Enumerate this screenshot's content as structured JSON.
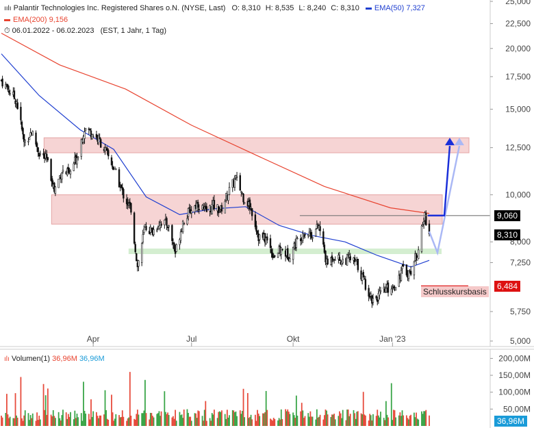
{
  "header": {
    "title": "Palantir Technologies Inc. Registered Shares o.N. (NYSE, Last)",
    "ohlc": [
      {
        "label": "O:",
        "value": "8,310"
      },
      {
        "label": "H:",
        "value": "8,535"
      },
      {
        "label": "L:",
        "value": "8,240"
      },
      {
        "label": "C:",
        "value": "8,310"
      }
    ],
    "ema50_label": "EMA(50)",
    "ema50_value": "7,327",
    "ema200_label": "EMA(200)",
    "ema200_value": "9,156",
    "date_range": "06.01.2022 - 06.02.2023",
    "date_meta": "(EST, 1 Jahr, 1 Tag)"
  },
  "volume_header": {
    "label": "Volumen(1)",
    "value_orange": "36,96M",
    "value_blue": "36,96M"
  },
  "colors": {
    "up": "#3aa548",
    "down": "#e74b3c",
    "ema200": "#e8432f",
    "ema50": "#1f3fd0",
    "resistance_zone": "#f3c6c6",
    "support_zone": "#cdebc8",
    "arrow_dark": "#1a2fd9",
    "arrow_light": "#aab8f5",
    "tag_dark": "#000000",
    "tag_red": "#dd1111",
    "vol_tag": "#1a9bd8"
  },
  "chart_data": [
    {
      "type": "candlestick",
      "x_ticks": [
        "Apr",
        "Jul",
        "Okt",
        "Jan '23"
      ],
      "y_ticks": [
        "25,000",
        "22,500",
        "20,000",
        "17,500",
        "15,000",
        "12,500",
        "10,000",
        "8,000",
        "7,250",
        "5,750",
        "5,000"
      ],
      "y_tick_values": [
        25,
        22.5,
        20,
        17.5,
        15,
        12.5,
        10,
        8,
        7.25,
        5.75,
        5
      ],
      "y_scale": "log",
      "ylim": [
        5,
        25
      ],
      "grid": false,
      "price_points": [
        [
          "2022-01-06",
          17.2
        ],
        [
          "2022-01-20",
          15.6
        ],
        [
          "2022-01-27",
          12.8
        ],
        [
          "2022-02-03",
          13.5
        ],
        [
          "2022-02-10",
          12.2
        ],
        [
          "2022-02-17",
          11.8
        ],
        [
          "2022-02-24",
          10.2
        ],
        [
          "2022-03-03",
          11.2
        ],
        [
          "2022-03-10",
          11.0
        ],
        [
          "2022-03-17",
          12.0
        ],
        [
          "2022-03-24",
          13.7
        ],
        [
          "2022-03-31",
          13.4
        ],
        [
          "2022-04-07",
          12.9
        ],
        [
          "2022-04-14",
          12.1
        ],
        [
          "2022-04-21",
          11.2
        ],
        [
          "2022-04-28",
          10.1
        ],
        [
          "2022-05-05",
          9.4
        ],
        [
          "2022-05-12",
          7.1
        ],
        [
          "2022-05-19",
          8.6
        ],
        [
          "2022-05-26",
          8.4
        ],
        [
          "2022-06-02",
          8.8
        ],
        [
          "2022-06-09",
          8.7
        ],
        [
          "2022-06-16",
          7.6
        ],
        [
          "2022-06-23",
          8.8
        ],
        [
          "2022-06-30",
          9.3
        ],
        [
          "2022-07-07",
          9.6
        ],
        [
          "2022-07-14",
          9.2
        ],
        [
          "2022-07-21",
          9.5
        ],
        [
          "2022-07-28",
          9.3
        ],
        [
          "2022-08-04",
          10.1
        ],
        [
          "2022-08-11",
          10.8
        ],
        [
          "2022-08-18",
          9.9
        ],
        [
          "2022-08-25",
          9.4
        ],
        [
          "2022-09-01",
          8.2
        ],
        [
          "2022-09-08",
          8.1
        ],
        [
          "2022-09-15",
          7.5
        ],
        [
          "2022-09-22",
          7.7
        ],
        [
          "2022-09-29",
          7.5
        ],
        [
          "2022-10-06",
          8.0
        ],
        [
          "2022-10-13",
          8.4
        ],
        [
          "2022-10-20",
          8.3
        ],
        [
          "2022-10-27",
          8.6
        ],
        [
          "2022-11-03",
          7.2
        ],
        [
          "2022-11-10",
          7.5
        ],
        [
          "2022-11-17",
          7.3
        ],
        [
          "2022-11-24",
          7.4
        ],
        [
          "2022-12-01",
          7.2
        ],
        [
          "2022-12-08",
          6.6
        ],
        [
          "2022-12-15",
          6.1
        ],
        [
          "2022-12-22",
          6.2
        ],
        [
          "2022-12-29",
          6.4
        ],
        [
          "2023-01-05",
          6.5
        ],
        [
          "2023-01-12",
          7.0
        ],
        [
          "2023-01-19",
          6.9
        ],
        [
          "2023-01-26",
          7.6
        ],
        [
          "2023-02-02",
          9.06
        ],
        [
          "2023-02-06",
          8.31
        ]
      ],
      "ema200": [
        [
          "2022-01-06",
          21.5
        ],
        [
          "2022-03-01",
          18.5
        ],
        [
          "2022-05-01",
          16.5
        ],
        [
          "2022-07-01",
          13.9
        ],
        [
          "2022-09-01",
          12.0
        ],
        [
          "2022-11-01",
          10.4
        ],
        [
          "2023-01-01",
          9.4
        ],
        [
          "2023-02-06",
          9.156
        ]
      ],
      "ema50": [
        [
          "2022-01-06",
          19.5
        ],
        [
          "2022-02-10",
          16.0
        ],
        [
          "2022-03-20",
          13.6
        ],
        [
          "2022-04-20",
          12.4
        ],
        [
          "2022-05-20",
          9.9
        ],
        [
          "2022-06-20",
          9.1
        ],
        [
          "2022-07-20",
          9.35
        ],
        [
          "2022-08-20",
          9.45
        ],
        [
          "2022-09-20",
          8.65
        ],
        [
          "2022-10-20",
          8.25
        ],
        [
          "2022-11-20",
          8.0
        ],
        [
          "2022-12-20",
          7.5
        ],
        [
          "2023-01-20",
          7.1
        ],
        [
          "2023-02-06",
          7.327
        ]
      ],
      "resistance_zones": [
        [
          12.2,
          13.1
        ],
        [
          8.7,
          10.0
        ]
      ],
      "support_zone": [
        7.55,
        7.75
      ],
      "level_line": 9.06,
      "price_tags": [
        {
          "value": 9.06,
          "label": "9,060"
        },
        {
          "value": 8.31,
          "label": "8,310"
        },
        {
          "value": 6.484,
          "label": "6,484"
        }
      ],
      "annotation": "Schlusskursbasis"
    },
    {
      "type": "bar",
      "title": "Volumen(1)",
      "y_ticks": [
        "200,00M",
        "150,00M",
        "100,00M",
        "50,00M"
      ],
      "y_tick_values": [
        200,
        150,
        100,
        50
      ],
      "ylim": [
        0,
        215
      ],
      "last_value_label": "36,96M",
      "last_value": 36.96
    }
  ]
}
